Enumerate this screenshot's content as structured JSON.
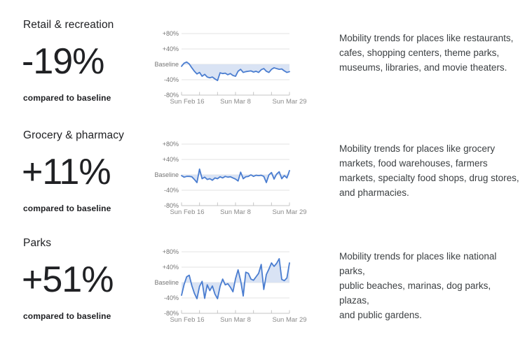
{
  "report": {
    "caption_label": "compared to baseline"
  },
  "colors": {
    "line": "#4a7dd0",
    "area_fill": "#d9e3f4",
    "gridline": "#e3e3e3",
    "axis_line": "#c4c4c4",
    "y_axis_label": "#757575",
    "x_axis_label": "#8a8a8a",
    "heading_text": "#202124",
    "body_text": "#3c4043"
  },
  "sections": [
    {
      "title": "Retail & recreation",
      "value": "-19%",
      "caption": "compared to baseline",
      "description_lines": [
        "Mobility trends for places like restaurants,",
        "cafes, shopping centers, theme parks,",
        "museums, libraries, and movie theaters."
      ]
    },
    {
      "title": "Grocery & pharmacy",
      "value": "+11%",
      "caption": "compared to baseline",
      "description_lines": [
        "Mobility trends for places like grocery",
        "markets, food warehouses, farmers",
        "markets, specialty food shops, drug stores,",
        "and pharmacies."
      ]
    },
    {
      "title": "Parks",
      "value": "+51%",
      "caption": "compared to baseline",
      "description_lines": [
        "Mobility trends for places like national parks,",
        "public beaches, marinas, dog parks, plazas,",
        "and public gardens."
      ]
    }
  ],
  "chart_data": [
    {
      "type": "line",
      "title": "Retail & recreation",
      "headline_change": "-19%",
      "series_name": "% change from baseline",
      "ylim": [
        -80,
        80
      ],
      "y_tick_labels": [
        "+80%",
        "+40%",
        "Baseline",
        "-40%",
        "-80%"
      ],
      "y_tick_values": [
        80,
        40,
        0,
        -40,
        -80
      ],
      "x_tick_labels": [
        "Sun Feb 16",
        "Sun Mar 8",
        "Sun Mar 29"
      ],
      "x_tick_days": [
        0,
        21,
        42
      ],
      "minor_tick_days": [
        0,
        7,
        14,
        21,
        28,
        35,
        42
      ],
      "x_range_days": 42,
      "values": [
        -5,
        3,
        6,
        1,
        -9,
        -18,
        -25,
        -21,
        -31,
        -26,
        -33,
        -35,
        -33,
        -38,
        -42,
        -22,
        -24,
        -23,
        -27,
        -24,
        -29,
        -31,
        -18,
        -13,
        -21,
        -19,
        -18,
        -17,
        -20,
        -18,
        -21,
        -14,
        -11,
        -18,
        -21,
        -13,
        -9,
        -11,
        -13,
        -12,
        -17,
        -21,
        -19
      ]
    },
    {
      "type": "line",
      "title": "Grocery & pharmacy",
      "headline_change": "+11%",
      "series_name": "% change from baseline",
      "ylim": [
        -80,
        80
      ],
      "y_tick_labels": [
        "+80%",
        "+40%",
        "Baseline",
        "-40%",
        "-80%"
      ],
      "y_tick_values": [
        80,
        40,
        0,
        -40,
        -80
      ],
      "x_tick_labels": [
        "Sun Feb 16",
        "Sun Mar 8",
        "Sun Mar 29"
      ],
      "x_tick_days": [
        0,
        21,
        42
      ],
      "minor_tick_days": [
        0,
        7,
        14,
        21,
        28,
        35,
        42
      ],
      "x_range_days": 42,
      "values": [
        -2,
        -6,
        -4,
        -4,
        -5,
        -12,
        -20,
        15,
        -10,
        -6,
        -12,
        -10,
        -14,
        -8,
        -10,
        -5,
        -8,
        -4,
        -6,
        -5,
        -8,
        -11,
        -16,
        7,
        -10,
        -5,
        -4,
        0,
        -4,
        -1,
        -2,
        -1,
        -4,
        -20,
        0,
        6,
        -11,
        2,
        8,
        -10,
        -2,
        -8,
        11
      ]
    },
    {
      "type": "line",
      "title": "Parks",
      "headline_change": "+51%",
      "series_name": "% change from baseline",
      "ylim": [
        -80,
        80
      ],
      "y_tick_labels": [
        "+80%",
        "+40%",
        "Baseline",
        "-40%",
        "-80%"
      ],
      "y_tick_values": [
        80,
        40,
        0,
        -40,
        -80
      ],
      "x_tick_labels": [
        "Sun Feb 16",
        "Sun Mar 8",
        "Sun Mar 29"
      ],
      "x_tick_days": [
        0,
        21,
        42
      ],
      "minor_tick_days": [
        0,
        7,
        14,
        21,
        28,
        35,
        42
      ],
      "x_range_days": 42,
      "values": [
        -33,
        -5,
        15,
        19,
        -8,
        -28,
        -42,
        -10,
        3,
        -41,
        -6,
        -21,
        -9,
        -30,
        -42,
        -10,
        9,
        -6,
        -3,
        -12,
        -24,
        10,
        33,
        5,
        -35,
        27,
        24,
        9,
        6,
        15,
        24,
        47,
        -18,
        21,
        35,
        51,
        42,
        50,
        62,
        8,
        5,
        12,
        51
      ]
    }
  ]
}
